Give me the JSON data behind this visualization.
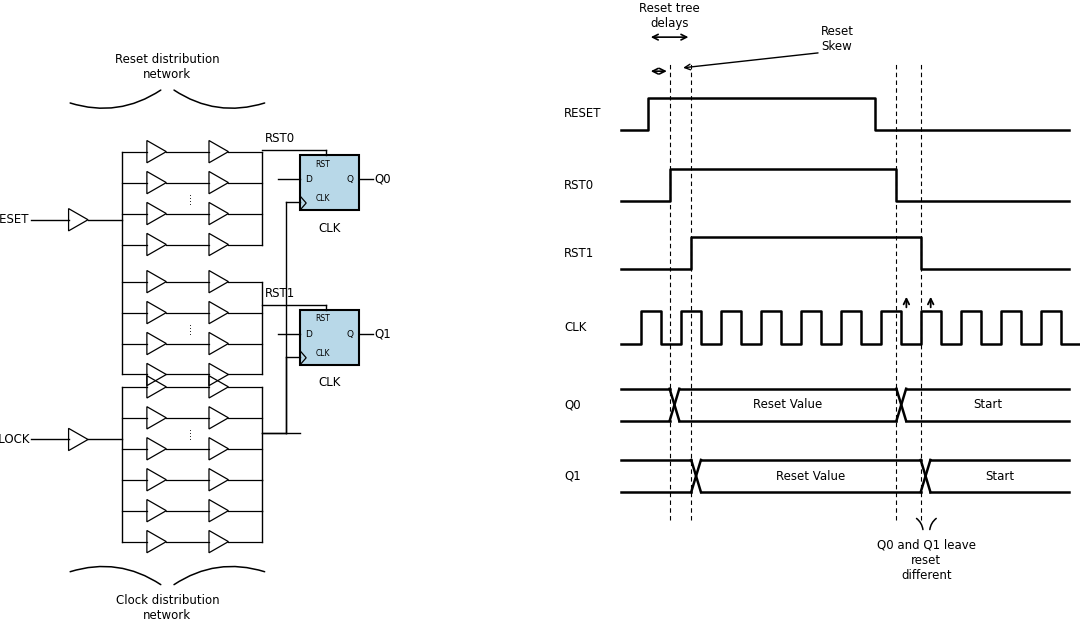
{
  "bg_color": "#ffffff",
  "left_panel": {
    "reset_label": "RESET",
    "clock_label": "CLOCK",
    "rst0_label": "RST0",
    "rst1_label": "RST1",
    "clk_label": "CLK",
    "q0_label": "Q0",
    "q1_label": "Q1",
    "top_brace_label": "Reset distribution\nnetwork",
    "bot_brace_label": "Clock distribution\nnetwork",
    "ff_fill": "#b8d8e8",
    "ff_edge": "#000000"
  },
  "right_panel": {
    "signals": [
      "RESET",
      "RST0",
      "RST1",
      "CLK",
      "Q0",
      "Q1"
    ],
    "title_delays": "Reset tree\ndelays",
    "title_skew": "Reset\nSkew",
    "q0_label1": "Reset Value",
    "q0_label2": "Start",
    "q1_label1": "Reset Value",
    "q1_label2": "Start",
    "bottom_label": "Q0 and Q1 leave\nreset\ndifferent"
  }
}
